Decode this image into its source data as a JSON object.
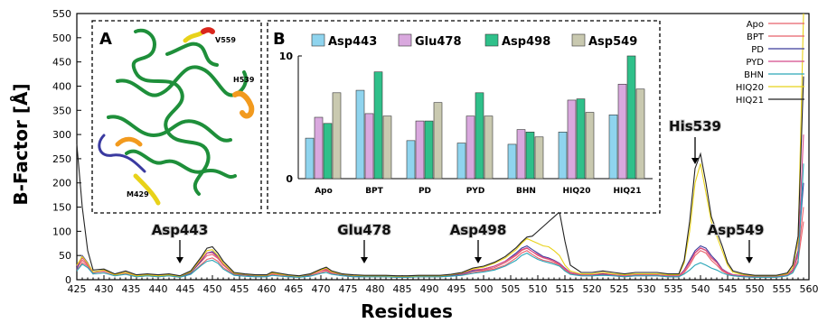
{
  "chart_data": [
    {
      "type": "line",
      "xlabel": "Residues",
      "ylabel": "B-Factor [Å]",
      "xlim": [
        425,
        560
      ],
      "ylim": [
        0,
        550
      ],
      "x_ticks": [
        425,
        430,
        435,
        440,
        445,
        450,
        455,
        460,
        465,
        470,
        475,
        480,
        485,
        490,
        495,
        500,
        505,
        510,
        515,
        520,
        525,
        530,
        535,
        540,
        545,
        550,
        555,
        560
      ],
      "y_ticks": [
        0,
        50,
        100,
        150,
        200,
        250,
        300,
        350,
        400,
        450,
        500,
        550
      ],
      "legend_position": "top-right",
      "x": [
        425,
        426,
        427,
        428,
        430,
        432,
        434,
        436,
        438,
        440,
        442,
        444,
        446,
        448,
        449,
        450,
        451,
        452,
        454,
        456,
        458,
        460,
        461,
        462,
        464,
        466,
        468,
        470,
        471,
        472,
        474,
        476,
        478,
        480,
        482,
        484,
        486,
        488,
        490,
        492,
        494,
        496,
        498,
        500,
        502,
        504,
        506,
        507,
        508,
        509,
        510,
        511,
        512,
        513,
        514,
        515,
        516,
        518,
        520,
        522,
        524,
        526,
        528,
        530,
        532,
        534,
        536,
        537,
        538,
        539,
        540,
        541,
        542,
        543,
        544,
        545,
        546,
        548,
        550,
        552,
        554,
        556,
        557,
        558,
        559
      ],
      "series": [
        {
          "name": "Apo",
          "color": "#e8606a",
          "values": [
            20,
            35,
            28,
            12,
            15,
            8,
            12,
            6,
            8,
            6,
            8,
            5,
            12,
            32,
            42,
            45,
            38,
            25,
            10,
            8,
            6,
            6,
            10,
            8,
            6,
            5,
            8,
            15,
            18,
            12,
            8,
            6,
            6,
            6,
            6,
            5,
            5,
            6,
            6,
            6,
            8,
            10,
            15,
            18,
            22,
            30,
            45,
            55,
            60,
            52,
            45,
            40,
            38,
            35,
            30,
            20,
            12,
            8,
            8,
            10,
            8,
            6,
            8,
            8,
            8,
            6,
            6,
            15,
            30,
            50,
            60,
            55,
            40,
            30,
            18,
            12,
            8,
            6,
            5,
            5,
            5,
            8,
            15,
            40,
            120
          ]
        },
        {
          "name": "BPT",
          "color": "#e8606a",
          "values": [
            25,
            40,
            30,
            15,
            18,
            10,
            14,
            8,
            10,
            8,
            10,
            7,
            15,
            38,
            50,
            52,
            44,
            30,
            12,
            10,
            8,
            8,
            12,
            10,
            8,
            6,
            10,
            18,
            20,
            14,
            10,
            8,
            7,
            7,
            7,
            6,
            6,
            7,
            7,
            7,
            9,
            12,
            18,
            20,
            25,
            35,
            50,
            60,
            65,
            58,
            50,
            45,
            42,
            38,
            32,
            22,
            14,
            9,
            9,
            12,
            9,
            7,
            9,
            9,
            9,
            7,
            7,
            18,
            35,
            55,
            65,
            60,
            45,
            35,
            20,
            14,
            9,
            7,
            6,
            6,
            6,
            9,
            18,
            50,
            150
          ]
        },
        {
          "name": "PD",
          "color": "#3a3a9a",
          "values": [
            22,
            50,
            35,
            15,
            20,
            10,
            15,
            8,
            10,
            8,
            10,
            6,
            14,
            40,
            55,
            58,
            48,
            32,
            12,
            10,
            8,
            8,
            14,
            12,
            8,
            6,
            10,
            20,
            22,
            15,
            10,
            8,
            7,
            7,
            7,
            6,
            6,
            7,
            7,
            7,
            8,
            12,
            18,
            22,
            28,
            38,
            55,
            65,
            70,
            62,
            55,
            48,
            45,
            40,
            34,
            24,
            15,
            10,
            10,
            12,
            10,
            8,
            10,
            10,
            10,
            8,
            8,
            20,
            40,
            60,
            70,
            65,
            50,
            38,
            22,
            15,
            10,
            8,
            6,
            6,
            6,
            10,
            20,
            60,
            200
          ]
        },
        {
          "name": "PYD",
          "color": "#d44a8a",
          "values": [
            28,
            45,
            32,
            16,
            19,
            11,
            15,
            9,
            11,
            8,
            11,
            7,
            16,
            42,
            55,
            56,
            46,
            32,
            13,
            11,
            9,
            9,
            13,
            11,
            9,
            7,
            11,
            19,
            22,
            15,
            11,
            9,
            8,
            8,
            8,
            7,
            7,
            8,
            8,
            8,
            10,
            13,
            20,
            22,
            28,
            38,
            52,
            62,
            66,
            58,
            52,
            46,
            43,
            39,
            33,
            23,
            15,
            10,
            10,
            13,
            10,
            8,
            10,
            10,
            10,
            8,
            8,
            19,
            36,
            56,
            66,
            61,
            46,
            36,
            21,
            15,
            10,
            8,
            7,
            7,
            7,
            10,
            19,
            55,
            300
          ]
        },
        {
          "name": "BHN",
          "color": "#2aa6b8",
          "values": [
            18,
            32,
            25,
            12,
            14,
            8,
            11,
            6,
            8,
            6,
            8,
            5,
            11,
            30,
            38,
            40,
            34,
            22,
            9,
            7,
            6,
            6,
            9,
            8,
            6,
            5,
            7,
            13,
            15,
            11,
            8,
            6,
            6,
            6,
            6,
            5,
            5,
            6,
            6,
            6,
            7,
            9,
            13,
            16,
            20,
            28,
            40,
            50,
            55,
            48,
            42,
            38,
            35,
            32,
            28,
            18,
            11,
            8,
            8,
            9,
            8,
            6,
            8,
            8,
            8,
            6,
            6,
            12,
            20,
            30,
            35,
            30,
            24,
            20,
            14,
            10,
            8,
            6,
            5,
            5,
            5,
            8,
            14,
            35,
            240
          ]
        },
        {
          "name": "HIQ20",
          "color": "#e8d21a",
          "values": [
            30,
            48,
            34,
            16,
            20,
            10,
            15,
            8,
            10,
            8,
            10,
            7,
            16,
            45,
            60,
            62,
            50,
            34,
            13,
            11,
            9,
            9,
            14,
            12,
            9,
            7,
            11,
            20,
            24,
            16,
            11,
            9,
            8,
            8,
            8,
            7,
            7,
            8,
            8,
            8,
            10,
            14,
            22,
            26,
            34,
            45,
            62,
            75,
            85,
            80,
            75,
            70,
            68,
            60,
            50,
            30,
            18,
            12,
            12,
            15,
            12,
            10,
            12,
            12,
            12,
            10,
            10,
            35,
            100,
            200,
            240,
            180,
            120,
            90,
            60,
            30,
            15,
            10,
            8,
            8,
            8,
            12,
            25,
            80,
            550
          ]
        },
        {
          "name": "HIQ21",
          "color": "#222222",
          "values": [
            280,
            150,
            60,
            20,
            22,
            12,
            18,
            10,
            12,
            10,
            12,
            8,
            18,
            48,
            65,
            68,
            55,
            38,
            15,
            12,
            10,
            10,
            16,
            14,
            10,
            8,
            12,
            22,
            26,
            18,
            12,
            10,
            9,
            9,
            9,
            8,
            8,
            9,
            9,
            9,
            11,
            15,
            24,
            28,
            36,
            48,
            66,
            78,
            88,
            90,
            100,
            110,
            120,
            130,
            140,
            80,
            30,
            15,
            15,
            18,
            15,
            12,
            15,
            15,
            15,
            12,
            12,
            40,
            120,
            230,
            260,
            200,
            130,
            100,
            70,
            35,
            18,
            12,
            9,
            9,
            9,
            14,
            30,
            90,
            420
          ]
        }
      ],
      "annotations": [
        {
          "label": "Asp443",
          "x": 444
        },
        {
          "label": "Glu478",
          "x": 478
        },
        {
          "label": "Asp498",
          "x": 499
        },
        {
          "label": "His539",
          "x": 539
        },
        {
          "label": "Asp549",
          "x": 549
        }
      ]
    },
    {
      "type": "bar",
      "panel_label": "B",
      "categories": [
        "Apo",
        "BPT",
        "PD",
        "PYD",
        "BHN",
        "HIQ20",
        "HIQ21"
      ],
      "ylim": [
        0,
        10
      ],
      "y_ticks": [
        0,
        10
      ],
      "series": [
        {
          "name": "Asp443",
          "color": "#8fd4ee",
          "values": [
            3.3,
            7.2,
            3.1,
            2.9,
            2.8,
            3.8,
            5.2
          ]
        },
        {
          "name": "Glu478",
          "color": "#d9a8de",
          "values": [
            5.0,
            5.3,
            4.7,
            5.1,
            4.0,
            6.4,
            7.7
          ]
        },
        {
          "name": "Asp498",
          "color": "#2fc08a",
          "values": [
            4.5,
            8.7,
            4.7,
            7.0,
            3.8,
            6.5,
            10.0
          ]
        },
        {
          "name": "Asp549",
          "color": "#c9c9b0",
          "values": [
            7.0,
            5.1,
            6.2,
            5.1,
            3.4,
            5.4,
            7.3
          ]
        }
      ]
    }
  ],
  "inset_a": {
    "panel_label": "A",
    "labels": {
      "v559": "V559",
      "h539": "H539",
      "m429": "M429"
    }
  }
}
